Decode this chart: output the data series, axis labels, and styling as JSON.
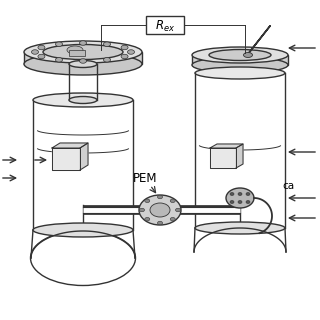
{
  "bg_color": "#ffffff",
  "line_color": "#333333",
  "text_color": "#000000",
  "labels": {
    "PEM": "PEM",
    "Rex": "$R_{ex}$",
    "ca": "ca"
  },
  "figsize": [
    3.2,
    3.2
  ],
  "dpi": 100
}
